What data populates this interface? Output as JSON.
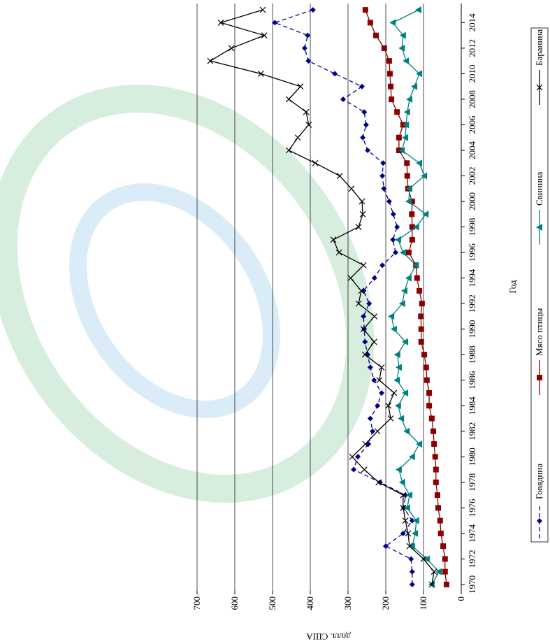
{
  "chart_data": {
    "type": "line",
    "x_label": "Год",
    "y_label": "долл. США",
    "x": [
      1970,
      1971,
      1972,
      1973,
      1974,
      1975,
      1976,
      1977,
      1978,
      1979,
      1980,
      1981,
      1982,
      1983,
      1984,
      1985,
      1986,
      1987,
      1988,
      1989,
      1990,
      1991,
      1992,
      1993,
      1994,
      1995,
      1996,
      1997,
      1998,
      1999,
      2000,
      2001,
      2002,
      2003,
      2004,
      2005,
      2006,
      2007,
      2008,
      2009,
      2010,
      2011,
      2012,
      2013,
      2014,
      2015
    ],
    "xlim": [
      1969.5,
      2015.5
    ],
    "xticks": [
      1970,
      1972,
      1974,
      1976,
      1978,
      1980,
      1982,
      1984,
      1986,
      1988,
      1990,
      1992,
      1994,
      1996,
      1998,
      2000,
      2002,
      2004,
      2006,
      2008,
      2010,
      2012,
      2014
    ],
    "ylim": [
      0,
      700
    ],
    "yticks": [
      0,
      100,
      200,
      300,
      400,
      500,
      600,
      700
    ],
    "grid": true,
    "legend": "bottom",
    "series": [
      {
        "name": "Говядина",
        "color": "#00008b",
        "marker": "diamond",
        "dash": true,
        "values": [
          130,
          130,
          133,
          200,
          154,
          130,
          152,
          148,
          215,
          285,
          274,
          246,
          235,
          241,
          222,
          211,
          231,
          241,
          248,
          255,
          257,
          259,
          244,
          259,
          230,
          209,
          174,
          181,
          170,
          180,
          191,
          205,
          209,
          207,
          248,
          261,
          252,
          257,
          313,
          263,
          335,
          405,
          415,
          407,
          494,
          393
        ]
      },
      {
        "name": "Мясо птицы",
        "color": "#8b0000",
        "marker": "square",
        "dash": false,
        "values": [
          39,
          43,
          43,
          48,
          54,
          56,
          61,
          63,
          67,
          67,
          69,
          72,
          74,
          78,
          85,
          85,
          91,
          93,
          98,
          106,
          106,
          107,
          104,
          111,
          117,
          120,
          139,
          130,
          130,
          131,
          130,
          141,
          143,
          144,
          165,
          165,
          154,
          170,
          185,
          187,
          189,
          191,
          204,
          226,
          241,
          254
        ]
      },
      {
        "name": "Свинина",
        "color": "#008080",
        "marker": "triangle",
        "dash": false,
        "values": [
          78,
          59,
          91,
          130,
          122,
          119,
          143,
          137,
          156,
          165,
          130,
          111,
          144,
          159,
          167,
          148,
          170,
          165,
          169,
          148,
          178,
          185,
          156,
          150,
          139,
          120,
          154,
          167,
          119,
          94,
          139,
          137,
          98,
          111,
          157,
          148,
          146,
          143,
          137,
          124,
          111,
          146,
          157,
          154,
          181,
          113
        ]
      },
      {
        "name": "Баранина",
        "color": "#000000",
        "marker": "x",
        "dash": false,
        "values": [
          78,
          72,
          100,
          137,
          141,
          148,
          154,
          154,
          219,
          257,
          289,
          254,
          222,
          187,
          193,
          178,
          217,
          211,
          255,
          231,
          259,
          230,
          272,
          265,
          293,
          259,
          324,
          339,
          272,
          261,
          263,
          291,
          322,
          387,
          457,
          433,
          404,
          411,
          457,
          426,
          531,
          665,
          609,
          522,
          637,
          526
        ]
      }
    ]
  }
}
